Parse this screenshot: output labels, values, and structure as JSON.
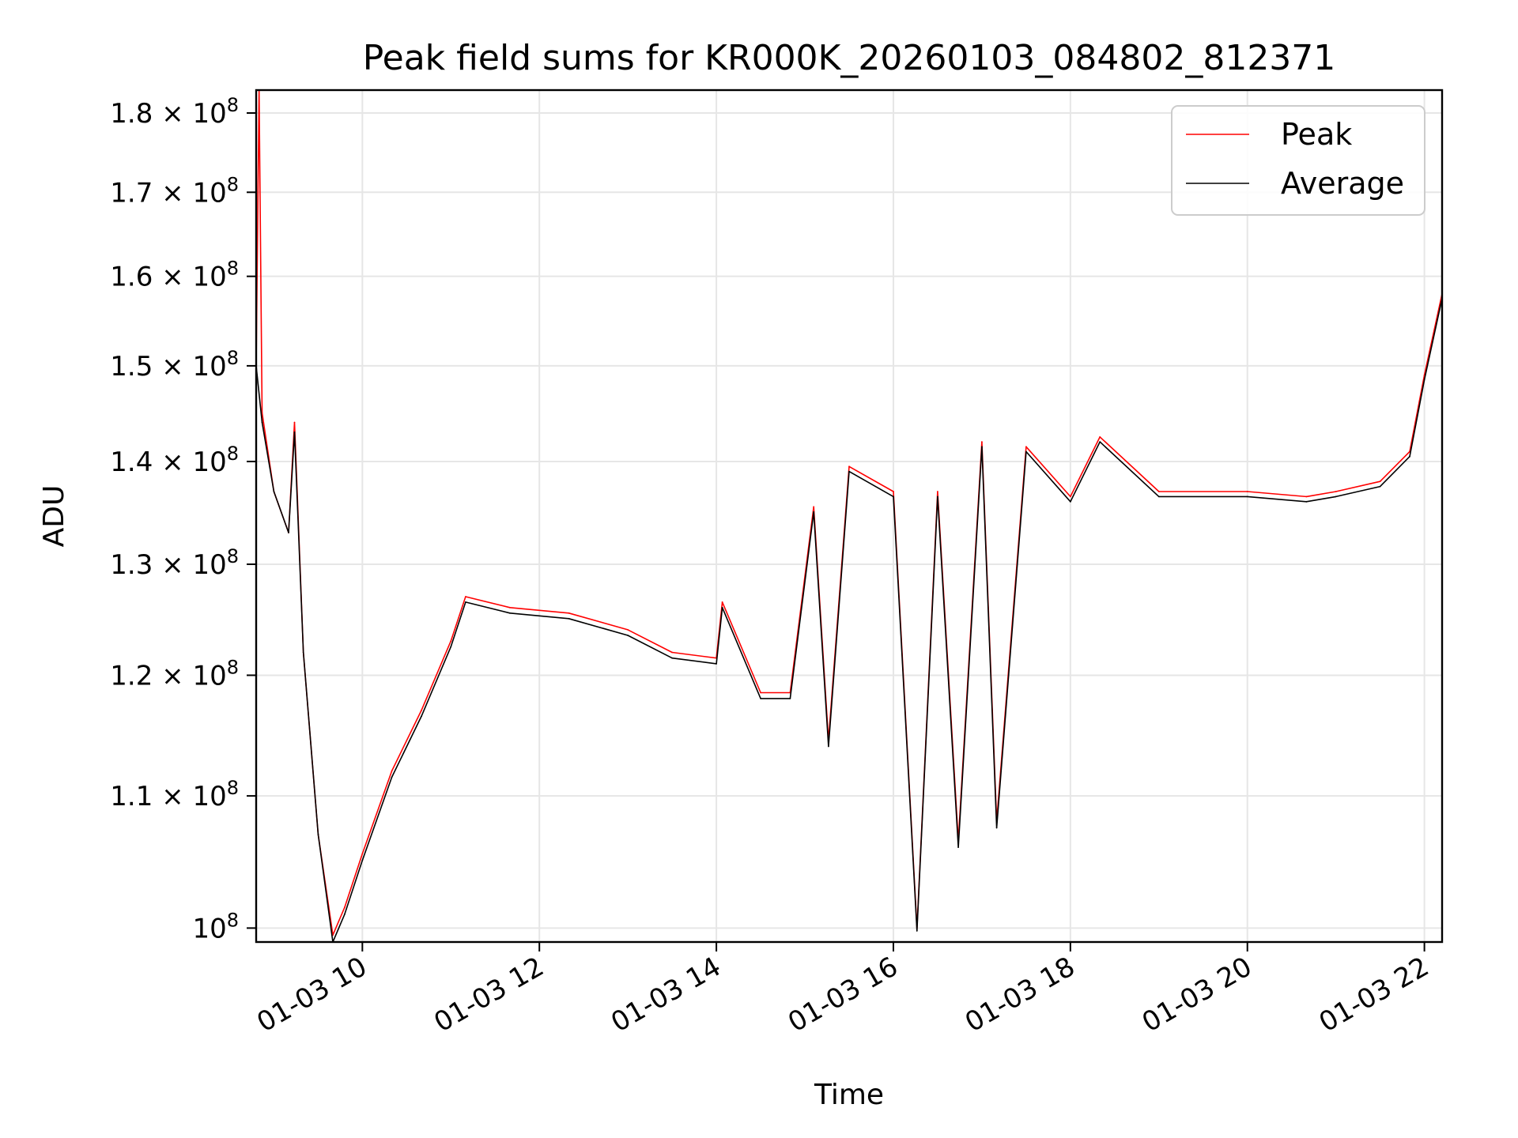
{
  "chart_data": {
    "type": "line",
    "title": "Peak field sums for KR000K_20260103_084802_812371",
    "xlabel": "Time",
    "ylabel": "ADU",
    "yscale": "log",
    "grid": true,
    "legend_position": "top-right",
    "xlim": [
      "2026-01-03 08:48",
      "2026-01-03 22:12"
    ],
    "ylim": [
      99000000,
      183000000
    ],
    "x_ticks": [
      "01-03 10",
      "01-03 12",
      "01-03 14",
      "01-03 16",
      "01-03 18",
      "01-03 20",
      "01-03 22"
    ],
    "y_ticks": [
      {
        "value": 100000000,
        "base": "10",
        "exp": "8",
        "mantissa": ""
      },
      {
        "value": 110000000,
        "mantissa": "1.1",
        "base": "10",
        "exp": "8"
      },
      {
        "value": 120000000,
        "mantissa": "1.2",
        "base": "10",
        "exp": "8"
      },
      {
        "value": 130000000,
        "mantissa": "1.3",
        "base": "10",
        "exp": "8"
      },
      {
        "value": 140000000,
        "mantissa": "1.4",
        "base": "10",
        "exp": "8"
      },
      {
        "value": 150000000,
        "mantissa": "1.5",
        "base": "10",
        "exp": "8"
      },
      {
        "value": 160000000,
        "mantissa": "1.6",
        "base": "10",
        "exp": "8"
      },
      {
        "value": 170000000,
        "mantissa": "1.7",
        "base": "10",
        "exp": "8"
      },
      {
        "value": 180000000,
        "mantissa": "1.8",
        "base": "10",
        "exp": "8"
      }
    ],
    "series": [
      {
        "name": "Peak",
        "color": "#ff0000",
        "points": [
          [
            "2026-01-03 08:48",
            150000000
          ],
          [
            "2026-01-03 08:50",
            183000000
          ],
          [
            "2026-01-03 08:52",
            145000000
          ],
          [
            "2026-01-03 09:00",
            137000000
          ],
          [
            "2026-01-03 09:10",
            133000000
          ],
          [
            "2026-01-03 09:14",
            144000000
          ],
          [
            "2026-01-03 09:20",
            122000000
          ],
          [
            "2026-01-03 09:30",
            107000000
          ],
          [
            "2026-01-03 09:40",
            99500000
          ],
          [
            "2026-01-03 09:48",
            101500000
          ],
          [
            "2026-01-03 10:00",
            105500000
          ],
          [
            "2026-01-03 10:20",
            112000000
          ],
          [
            "2026-01-03 10:40",
            117000000
          ],
          [
            "2026-01-03 11:00",
            123000000
          ],
          [
            "2026-01-03 11:10",
            127000000
          ],
          [
            "2026-01-03 11:40",
            126000000
          ],
          [
            "2026-01-03 12:20",
            125500000
          ],
          [
            "2026-01-03 13:00",
            124000000
          ],
          [
            "2026-01-03 13:30",
            122000000
          ],
          [
            "2026-01-03 14:00",
            121500000
          ],
          [
            "2026-01-03 14:04",
            126500000
          ],
          [
            "2026-01-03 14:30",
            118500000
          ],
          [
            "2026-01-03 14:50",
            118500000
          ],
          [
            "2026-01-03 15:06",
            135500000
          ],
          [
            "2026-01-03 15:16",
            114500000
          ],
          [
            "2026-01-03 15:30",
            139500000
          ],
          [
            "2026-01-03 16:00",
            137000000
          ],
          [
            "2026-01-03 16:16",
            100000000
          ],
          [
            "2026-01-03 16:30",
            137000000
          ],
          [
            "2026-01-03 16:44",
            106500000
          ],
          [
            "2026-01-03 17:00",
            142000000
          ],
          [
            "2026-01-03 17:10",
            108000000
          ],
          [
            "2026-01-03 17:30",
            141500000
          ],
          [
            "2026-01-03 18:00",
            136500000
          ],
          [
            "2026-01-03 18:20",
            142500000
          ],
          [
            "2026-01-03 19:00",
            137000000
          ],
          [
            "2026-01-03 20:00",
            137000000
          ],
          [
            "2026-01-03 20:40",
            136500000
          ],
          [
            "2026-01-03 21:00",
            137000000
          ],
          [
            "2026-01-03 21:30",
            138000000
          ],
          [
            "2026-01-03 21:50",
            141000000
          ],
          [
            "2026-01-03 22:00",
            149000000
          ],
          [
            "2026-01-03 22:12",
            158000000
          ]
        ]
      },
      {
        "name": "Average",
        "color": "#000000",
        "points": [
          [
            "2026-01-03 08:48",
            150000000
          ],
          [
            "2026-01-03 08:52",
            144000000
          ],
          [
            "2026-01-03 09:00",
            137000000
          ],
          [
            "2026-01-03 09:10",
            133000000
          ],
          [
            "2026-01-03 09:14",
            143000000
          ],
          [
            "2026-01-03 09:20",
            122000000
          ],
          [
            "2026-01-03 09:30",
            107000000
          ],
          [
            "2026-01-03 09:40",
            99000000
          ],
          [
            "2026-01-03 09:48",
            101000000
          ],
          [
            "2026-01-03 10:00",
            105000000
          ],
          [
            "2026-01-03 10:20",
            111500000
          ],
          [
            "2026-01-03 10:40",
            116500000
          ],
          [
            "2026-01-03 11:00",
            122500000
          ],
          [
            "2026-01-03 11:10",
            126500000
          ],
          [
            "2026-01-03 11:40",
            125500000
          ],
          [
            "2026-01-03 12:20",
            125000000
          ],
          [
            "2026-01-03 13:00",
            123500000
          ],
          [
            "2026-01-03 13:30",
            121500000
          ],
          [
            "2026-01-03 14:00",
            121000000
          ],
          [
            "2026-01-03 14:04",
            126000000
          ],
          [
            "2026-01-03 14:30",
            118000000
          ],
          [
            "2026-01-03 14:50",
            118000000
          ],
          [
            "2026-01-03 15:06",
            135000000
          ],
          [
            "2026-01-03 15:16",
            114000000
          ],
          [
            "2026-01-03 15:30",
            139000000
          ],
          [
            "2026-01-03 16:00",
            136500000
          ],
          [
            "2026-01-03 16:16",
            99800000
          ],
          [
            "2026-01-03 16:30",
            136500000
          ],
          [
            "2026-01-03 16:44",
            106000000
          ],
          [
            "2026-01-03 17:00",
            141500000
          ],
          [
            "2026-01-03 17:10",
            107500000
          ],
          [
            "2026-01-03 17:30",
            141000000
          ],
          [
            "2026-01-03 18:00",
            136000000
          ],
          [
            "2026-01-03 18:20",
            142000000
          ],
          [
            "2026-01-03 19:00",
            136500000
          ],
          [
            "2026-01-03 20:00",
            136500000
          ],
          [
            "2026-01-03 20:40",
            136000000
          ],
          [
            "2026-01-03 21:00",
            136500000
          ],
          [
            "2026-01-03 21:30",
            137500000
          ],
          [
            "2026-01-03 21:50",
            140500000
          ],
          [
            "2026-01-03 22:00",
            148500000
          ],
          [
            "2026-01-03 22:12",
            157500000
          ]
        ]
      }
    ]
  }
}
